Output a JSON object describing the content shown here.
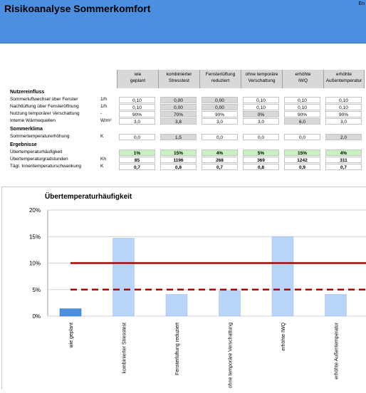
{
  "header": {
    "title": "Risikoanalyse Sommerkomfort",
    "lang": "En"
  },
  "table": {
    "columns": [
      "wie\ngeplant",
      "kombinierter\nStresstest",
      "Fensterlüftung\nreduziert",
      "ohne temporäre\nVerschattung",
      "erhöhte\nIWQ",
      "erhöhte\nAußentemperatur"
    ],
    "sections": [
      {
        "title": "Nutzereinfluss",
        "rows": [
          {
            "label": "Sommerluftwechsel über Fenster",
            "unit": "1/h",
            "values": [
              "0,10",
              "0,00",
              "0,00",
              "0,10",
              "0,10",
              "0,10"
            ],
            "shaded": [
              false,
              true,
              true,
              false,
              false,
              false
            ]
          },
          {
            "label": "Nachtlüftung über Fensteröffnung",
            "unit": "1/h",
            "values": [
              "0,10",
              "0,00",
              "0,00",
              "0,10",
              "0,10",
              "0,10"
            ],
            "shaded": [
              false,
              true,
              true,
              false,
              false,
              false
            ]
          },
          {
            "label": "Nutzung temporärer Verschattung",
            "unit": "-",
            "values": [
              "90%",
              "70%",
              "90%",
              "0%",
              "90%",
              "90%"
            ],
            "shaded": [
              false,
              true,
              false,
              true,
              false,
              false
            ]
          },
          {
            "label": "Interne Wärmequellen",
            "unit": "W/m²",
            "values": [
              "3,0",
              "3,8",
              "3,0",
              "3,0",
              "6,0",
              "3,0"
            ],
            "shaded": [
              false,
              true,
              false,
              false,
              true,
              false
            ]
          }
        ]
      },
      {
        "title": "Sommerklima",
        "rows": [
          {
            "label": "Sommertemperaturerhöhung",
            "unit": "K",
            "values": [
              "0,0",
              "1,5",
              "0,0",
              "0,0",
              "0,0",
              "2,0"
            ],
            "shaded": [
              false,
              true,
              false,
              false,
              false,
              true
            ]
          }
        ]
      },
      {
        "title": "Ergebnisse",
        "rows": [
          {
            "label": "Übertemperaturhäufigkeit",
            "unit": "",
            "values": [
              "1%",
              "15%",
              "4%",
              "5%",
              "15%",
              "4%"
            ],
            "style": "green"
          },
          {
            "label": "Übertemperaturgradstunden",
            "unit": "Kh",
            "values": [
              "85",
              "1196",
              "268",
              "369",
              "1242",
              "311"
            ],
            "style": "bold"
          },
          {
            "label": "Tägl. Innentemperaturschwankung",
            "unit": "K",
            "values": [
              "0,7",
              "0,8",
              "0,7",
              "0,8",
              "0,9",
              "0,7"
            ],
            "style": "bold"
          }
        ]
      }
    ]
  },
  "chart_data": {
    "type": "bar",
    "title": "Übertemperaturhäufigkeit",
    "categories": [
      "wie geplant",
      "kombinierter Stresstest",
      "Fensterlüftung reduziert",
      "ohne temporäre Verschattung",
      "erhöhte IWQ",
      "erhöhte Außentemperatur"
    ],
    "values": [
      1.4,
      14.7,
      4.1,
      4.8,
      15.0,
      4.1
    ],
    "highlight_index": 0,
    "ylim": [
      0,
      20
    ],
    "yticks": [
      "0%",
      "5%",
      "10%",
      "15%",
      "20%"
    ],
    "thresholds": [
      {
        "value": 10,
        "style": "solid"
      },
      {
        "value": 5,
        "style": "dashed"
      }
    ],
    "colors": {
      "bar": "#b8d4f8",
      "bar_highlight": "#4a8fe0",
      "threshold": "#b00000"
    },
    "grid": true
  }
}
